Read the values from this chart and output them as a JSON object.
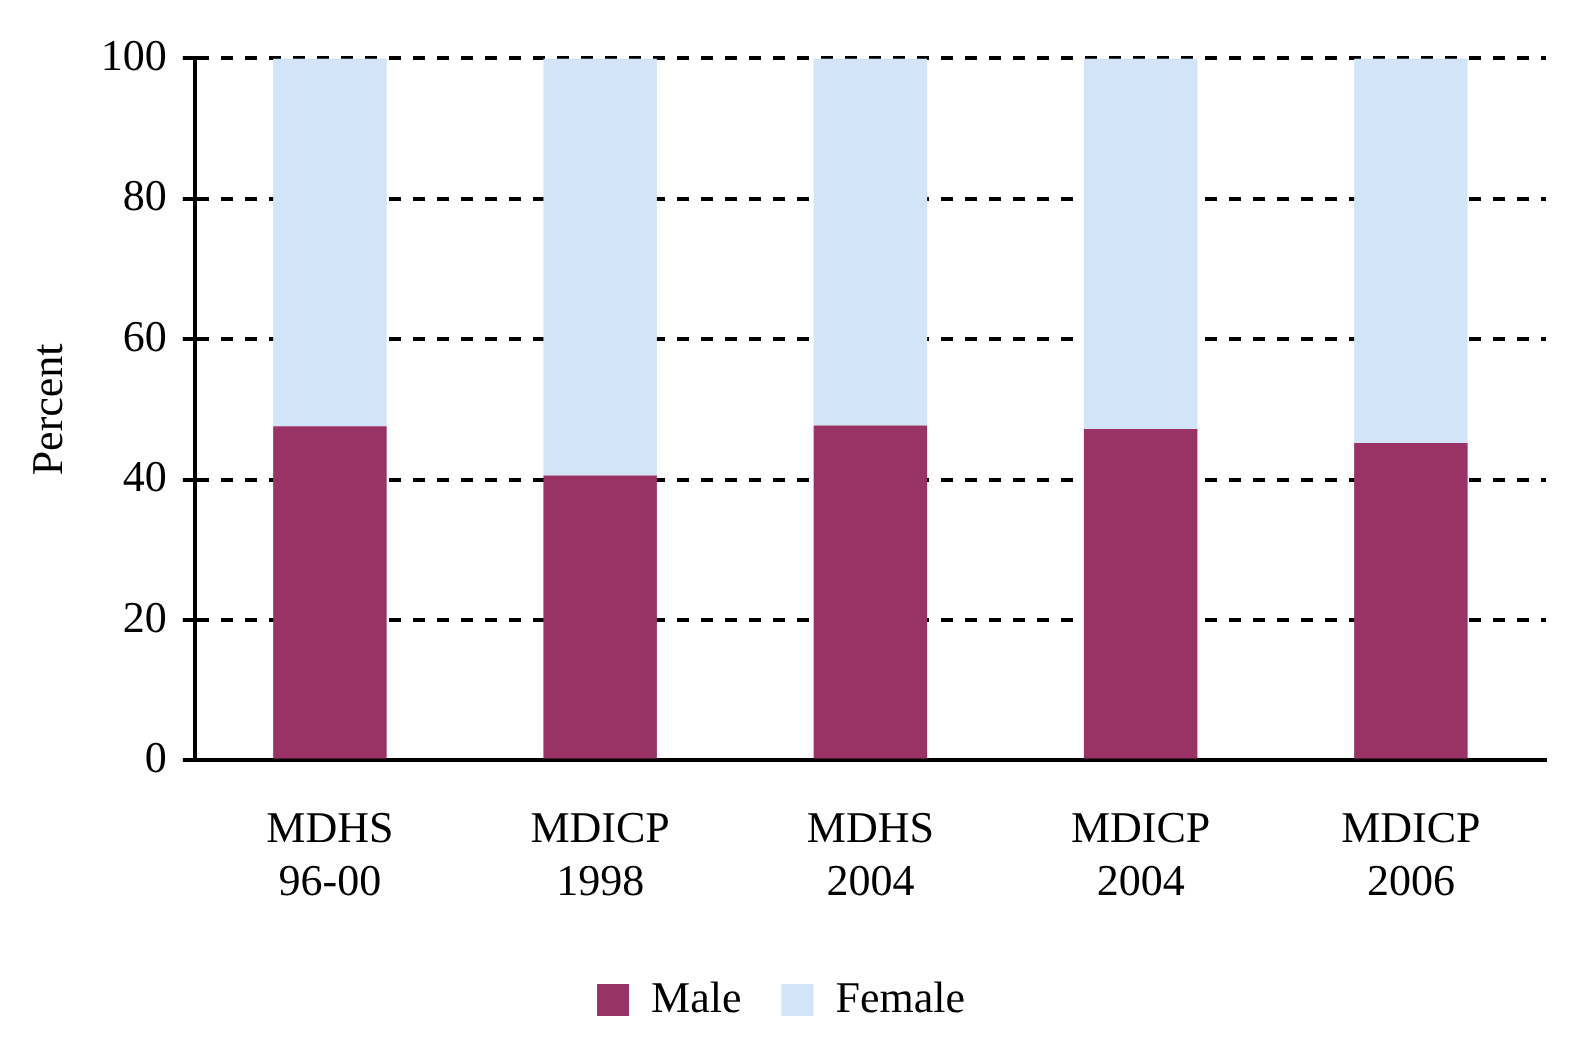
{
  "chart_data": {
    "type": "bar",
    "ylabel": "Percent",
    "categories": [
      "MDHS\n96-00",
      "MDICP\n1998",
      "MDHS\n2004",
      "MDICP\n2004",
      "MDICP\n2006"
    ],
    "series": [
      {
        "name": "Male",
        "color": "#993366",
        "values": [
          47.6,
          40.6,
          47.7,
          47.2,
          45.2
        ]
      },
      {
        "name": "Female",
        "color": "#d2e5f8",
        "values": [
          52.4,
          59.4,
          52.3,
          52.8,
          54.8
        ]
      }
    ],
    "stacked": true,
    "ylim": [
      0,
      100
    ],
    "yticks": [
      0,
      20,
      40,
      60,
      80,
      100
    ],
    "grid": "y",
    "legend": "bottom"
  }
}
